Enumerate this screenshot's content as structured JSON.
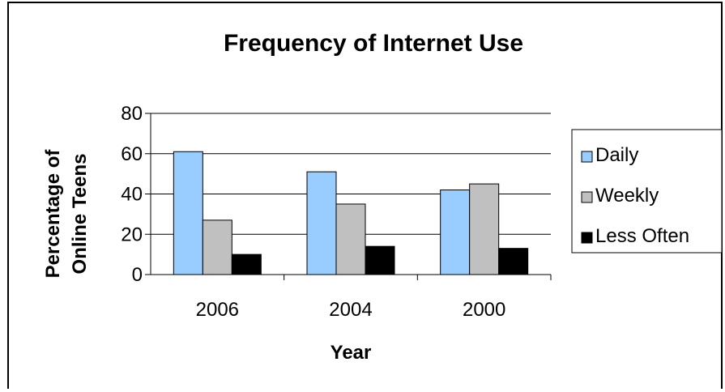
{
  "chart_data": {
    "type": "bar",
    "title": "Frequency of Internet Use",
    "xlabel": "Year",
    "ylabel_lines": [
      "Percentage of",
      "Online Teens"
    ],
    "categories": [
      "2006",
      "2004",
      "2000"
    ],
    "series": [
      {
        "name": "Daily",
        "values": [
          61,
          51,
          42
        ],
        "color": "#99ccff"
      },
      {
        "name": "Weekly",
        "values": [
          27,
          35,
          45
        ],
        "color": "#c0c0c0"
      },
      {
        "name": "Less Often",
        "values": [
          10,
          14,
          13
        ],
        "color": "#000000"
      }
    ],
    "ylim": [
      0,
      80
    ],
    "yticks": [
      "0",
      "20",
      "40",
      "60",
      "80"
    ],
    "grid": true,
    "legend_position": "right"
  }
}
